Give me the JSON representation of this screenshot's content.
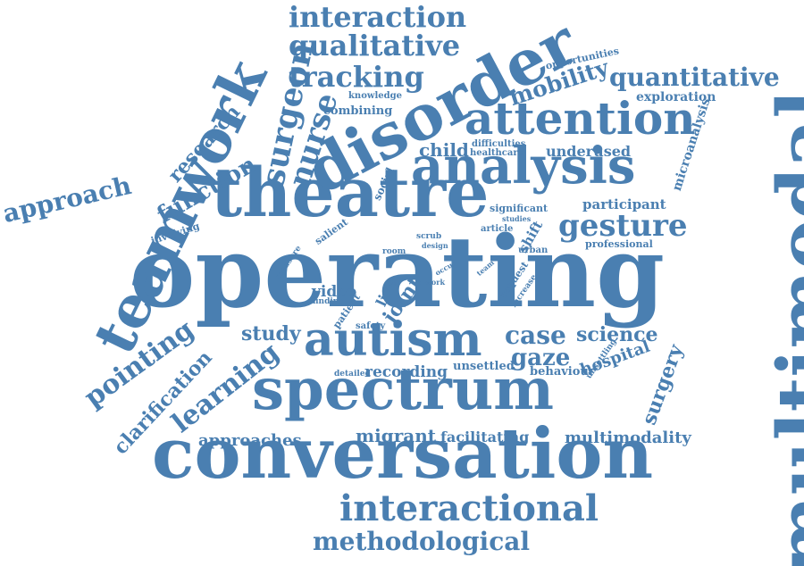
{
  "colors": {
    "text": "#4a7fb1",
    "background": "#ffffff"
  },
  "words": [
    "operating",
    "spectrum",
    "conversation",
    "multimodal",
    "theatre",
    "disorder",
    "analysis",
    "teamwork",
    "autism",
    "attention",
    "interactional",
    "methodological",
    "interaction",
    "qualitative",
    "tracking",
    "quantitative",
    "mobility",
    "surgeon",
    "nurse",
    "approach",
    "research",
    "function",
    "learning",
    "pointing",
    "clarification",
    "gesture",
    "case",
    "science",
    "gaze",
    "study",
    "recording",
    "unsettled",
    "behaviour",
    "hospital",
    "surgery",
    "approaches",
    "migrant",
    "facilitating",
    "multimodality",
    "video",
    "joint",
    "live",
    "safety",
    "detailed",
    "patient",
    "finding",
    "measure",
    "salient",
    "room",
    "design",
    "scrub",
    "occur",
    "work",
    "team",
    "request",
    "increase",
    "shift",
    "urban",
    "article",
    "studies",
    "significant",
    "participant",
    "professional",
    "child",
    "difficulties",
    "healthcare",
    "underused",
    "microanalysis",
    "exploration",
    "opportunities",
    "knowledge",
    "combining",
    "social",
    "involving",
    "unsettling"
  ]
}
